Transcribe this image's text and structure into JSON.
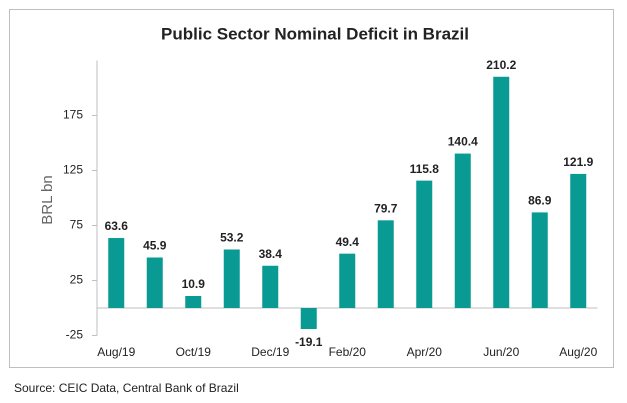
{
  "chart_data": {
    "type": "bar",
    "title": "Public Sector Nominal Deficit in Brazil",
    "y_label": "BRL bn",
    "source": "Source: CEIC Data, Central Bank of Brazil",
    "categories": [
      "Aug/19",
      null,
      "Oct/19",
      null,
      "Dec/19",
      null,
      "Feb/20",
      null,
      "Apr/20",
      null,
      "Jun/20",
      null,
      "Aug/20"
    ],
    "values": [
      63.6,
      45.9,
      10.9,
      53.2,
      38.4,
      -19.1,
      49.4,
      79.7,
      115.8,
      140.4,
      210.2,
      86.9,
      121.9
    ],
    "color": "#089a93",
    "ylim": [
      -25,
      225
    ],
    "yticks": [
      -25,
      25,
      75,
      125,
      175
    ],
    "grid": false
  }
}
